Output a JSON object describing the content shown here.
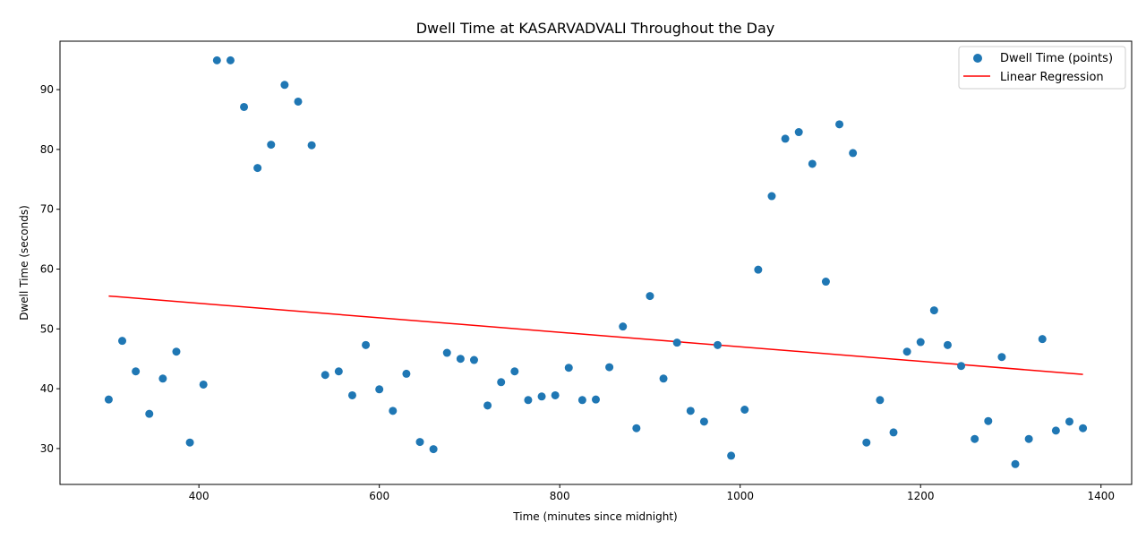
{
  "chart_data": {
    "type": "scatter",
    "title": "Dwell Time at KASARVADVALI Throughout the Day",
    "xlabel": "Time (minutes since midnight)",
    "ylabel": "Dwell Time (seconds)",
    "xlim": [
      246,
      1434
    ],
    "ylim": [
      24.0,
      98.1
    ],
    "xticks": [
      400,
      600,
      800,
      1000,
      1200,
      1400
    ],
    "yticks": [
      30,
      40,
      50,
      60,
      70,
      80,
      90
    ],
    "grid": false,
    "legend_position": "top-right",
    "colors": {
      "points": "#1f77b4",
      "regression": "#ff0000"
    },
    "series": [
      {
        "name": "Dwell Time (points)",
        "kind": "scatter",
        "points": [
          [
            300,
            38.2
          ],
          [
            315,
            48.0
          ],
          [
            330,
            42.9
          ],
          [
            345,
            35.8
          ],
          [
            360,
            41.7
          ],
          [
            375,
            46.2
          ],
          [
            390,
            31.0
          ],
          [
            405,
            40.7
          ],
          [
            420,
            94.9
          ],
          [
            435,
            94.9
          ],
          [
            450,
            87.1
          ],
          [
            465,
            76.9
          ],
          [
            480,
            80.8
          ],
          [
            495,
            90.8
          ],
          [
            510,
            88.0
          ],
          [
            525,
            80.7
          ],
          [
            540,
            42.3
          ],
          [
            555,
            42.9
          ],
          [
            570,
            38.9
          ],
          [
            585,
            47.3
          ],
          [
            600,
            39.9
          ],
          [
            615,
            36.3
          ],
          [
            630,
            42.5
          ],
          [
            645,
            31.1
          ],
          [
            660,
            29.9
          ],
          [
            675,
            46.0
          ],
          [
            690,
            45.0
          ],
          [
            705,
            44.8
          ],
          [
            720,
            37.2
          ],
          [
            735,
            41.1
          ],
          [
            750,
            42.9
          ],
          [
            765,
            38.1
          ],
          [
            780,
            38.7
          ],
          [
            795,
            38.9
          ],
          [
            810,
            43.5
          ],
          [
            825,
            38.1
          ],
          [
            840,
            38.2
          ],
          [
            855,
            43.6
          ],
          [
            870,
            50.4
          ],
          [
            885,
            33.4
          ],
          [
            900,
            55.5
          ],
          [
            915,
            41.7
          ],
          [
            930,
            47.7
          ],
          [
            945,
            36.3
          ],
          [
            960,
            34.5
          ],
          [
            975,
            47.3
          ],
          [
            990,
            28.8
          ],
          [
            1005,
            36.5
          ],
          [
            1020,
            59.9
          ],
          [
            1035,
            72.2
          ],
          [
            1050,
            81.8
          ],
          [
            1065,
            82.9
          ],
          [
            1080,
            77.6
          ],
          [
            1095,
            57.9
          ],
          [
            1110,
            84.2
          ],
          [
            1125,
            79.4
          ],
          [
            1140,
            31.0
          ],
          [
            1155,
            38.1
          ],
          [
            1170,
            32.7
          ],
          [
            1185,
            46.2
          ],
          [
            1200,
            47.8
          ],
          [
            1215,
            53.1
          ],
          [
            1230,
            47.3
          ],
          [
            1245,
            43.8
          ],
          [
            1260,
            31.6
          ],
          [
            1275,
            34.6
          ],
          [
            1290,
            45.3
          ],
          [
            1305,
            27.4
          ],
          [
            1320,
            31.6
          ],
          [
            1335,
            48.3
          ],
          [
            1350,
            33.0
          ],
          [
            1365,
            34.5
          ],
          [
            1380,
            33.4
          ]
        ]
      },
      {
        "name": "Linear Regression",
        "kind": "line",
        "points": [
          [
            300,
            55.5
          ],
          [
            1380,
            42.4
          ]
        ]
      }
    ]
  }
}
